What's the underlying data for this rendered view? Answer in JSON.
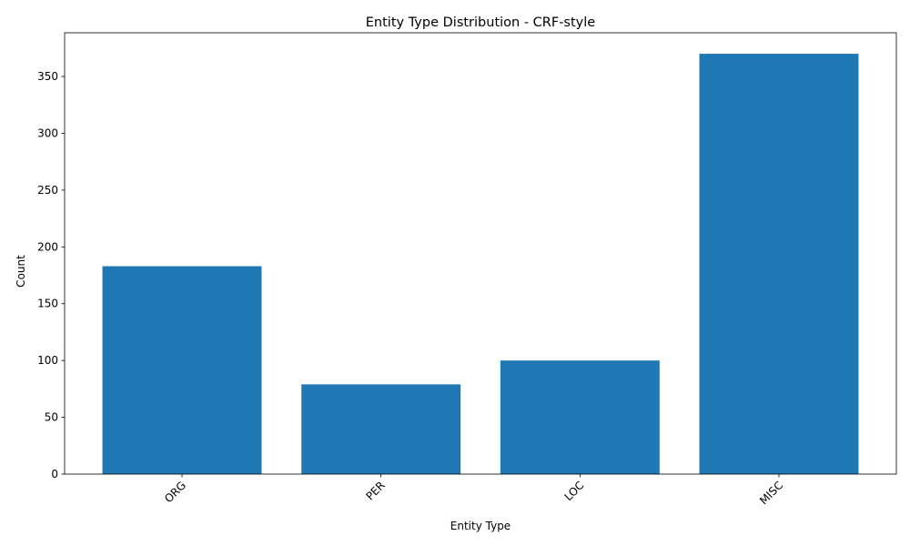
{
  "chart_data": {
    "type": "bar",
    "title": "Entity Type Distribution - CRF-style",
    "xlabel": "Entity Type",
    "ylabel": "Count",
    "categories": [
      "ORG",
      "PER",
      "LOC",
      "MISC"
    ],
    "values": [
      183,
      79,
      100,
      370
    ],
    "ylim": [
      0,
      388.5
    ],
    "yticks": [
      0,
      50,
      100,
      150,
      200,
      250,
      300,
      350
    ],
    "xtick_rotation_deg": 45,
    "grid": false,
    "legend": "none",
    "bar_color": "#1f77b4"
  }
}
